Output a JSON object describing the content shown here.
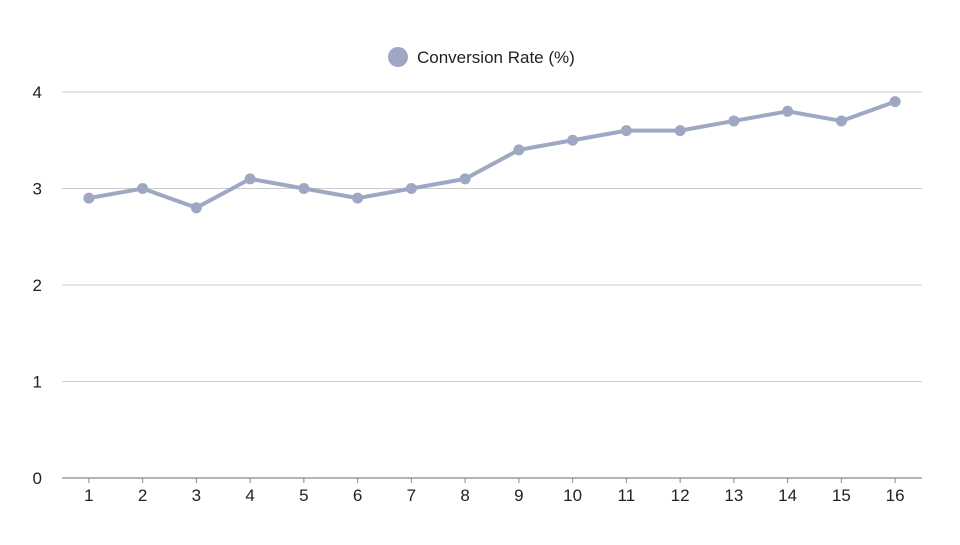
{
  "chart_data": {
    "type": "line",
    "x": [
      1,
      2,
      3,
      4,
      5,
      6,
      7,
      8,
      9,
      10,
      11,
      12,
      13,
      14,
      15,
      16
    ],
    "series": [
      {
        "name": "Conversion Rate (%)",
        "values": [
          2.9,
          3.0,
          2.8,
          3.1,
          3.0,
          2.9,
          3.0,
          3.1,
          3.4,
          3.5,
          3.6,
          3.6,
          3.7,
          3.8,
          3.7,
          3.9
        ],
        "color": "#9fa8c3"
      }
    ],
    "xlabel": "",
    "ylabel": "",
    "ylim": [
      0,
      4
    ],
    "yticks": [
      0,
      1,
      2,
      3,
      4
    ],
    "grid": true,
    "legend_position": "top-center"
  }
}
